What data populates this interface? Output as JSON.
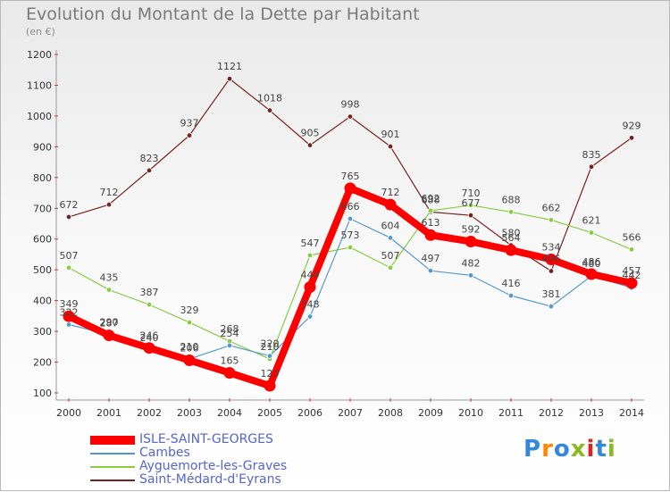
{
  "title": "Evolution du Montant de la Dette par Habitant",
  "unit_label": "(en €)",
  "brand": "Proxiti",
  "colors": {
    "isle": "#ff0000",
    "cambes": "#5599cc",
    "ayguemorte": "#88cc44",
    "saint_medard": "#772222",
    "axis_text": "#333333"
  },
  "chart_data": {
    "type": "line",
    "title": "Evolution du Montant de la Dette par Habitant",
    "ylabel": "(en €)",
    "ylim": [
      100,
      1200
    ],
    "y_ticks": [
      100,
      200,
      300,
      400,
      500,
      600,
      700,
      800,
      900,
      1000,
      1100,
      1200
    ],
    "x": [
      2000,
      2001,
      2002,
      2003,
      2004,
      2005,
      2006,
      2007,
      2008,
      2009,
      2010,
      2011,
      2012,
      2013,
      2014
    ],
    "legend_position": "bottom-left",
    "grid": false,
    "series": [
      {
        "name": "ISLE-SAINT-GEORGES",
        "color": "#ff0000",
        "values": [
          349,
          287,
          246,
          206,
          165,
          123,
          444,
          765,
          712,
          613,
          592,
          564,
          534,
          486,
          457
        ]
      },
      {
        "name": "Cambes",
        "color": "#5599cc",
        "values": [
          322,
          290,
          240,
          210,
          254,
          220,
          348,
          666,
          604,
          497,
          482,
          416,
          381,
          480,
          442
        ]
      },
      {
        "name": "Ayguemorte-les-Graves",
        "color": "#88cc44",
        "values": [
          507,
          435,
          387,
          329,
          268,
          210,
          547,
          573,
          507,
          692,
          710,
          688,
          662,
          621,
          566
        ]
      },
      {
        "name": "Saint-Médard-d'Eyrans",
        "color": "#772222",
        "values": [
          672,
          712,
          823,
          937,
          1121,
          1018,
          905,
          998,
          901,
          688,
          677,
          580,
          496,
          835,
          929
        ]
      }
    ]
  }
}
